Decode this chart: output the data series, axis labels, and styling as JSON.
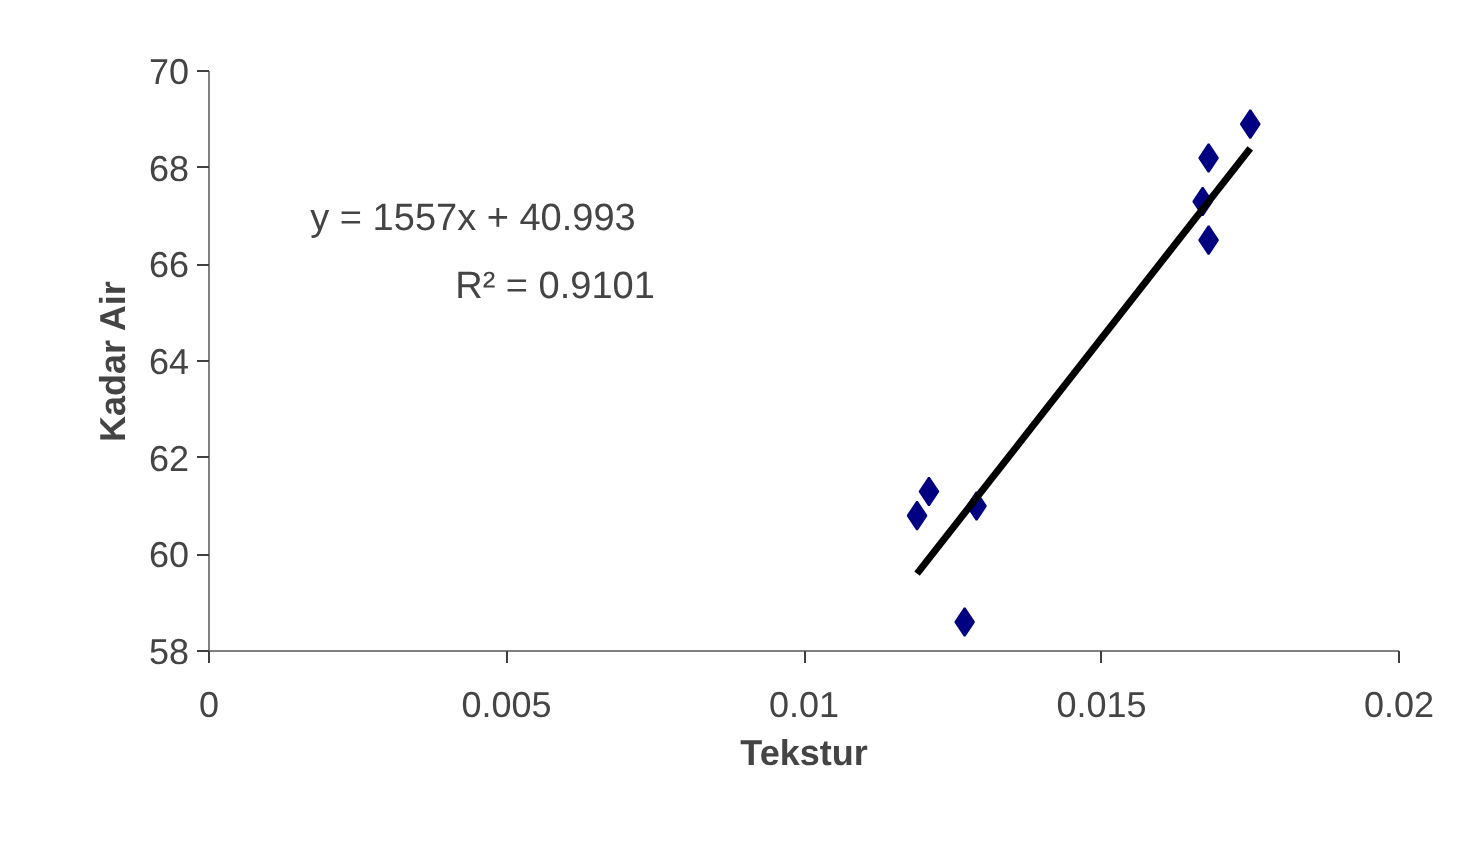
{
  "chart_data": {
    "type": "scatter",
    "xlabel": "Tekstur",
    "ylabel": "Kadar Air",
    "annotations": [
      "y = 1557x + 40.993",
      "R² = 0.9101"
    ],
    "series": [
      {
        "type": "scatter",
        "color": "#000080",
        "marker": "diamond",
        "x": [
          0.0175,
          0.0168,
          0.0167,
          0.0168,
          0.0121,
          0.0119,
          0.0129,
          0.0127
        ],
        "values": [
          68.9,
          68.2,
          67.3,
          66.5,
          61.3,
          60.8,
          61.0,
          58.6
        ]
      },
      {
        "type": "line",
        "color": "#000000",
        "marker": "none",
        "x": [
          0.0119,
          0.0175
        ],
        "values": [
          59.6,
          68.4
        ]
      }
    ],
    "xlim": [
      0,
      0.02
    ],
    "ylim": [
      58,
      70
    ],
    "xticks": [
      0,
      0.005,
      0.01,
      0.015,
      0.02
    ],
    "yticks": [
      58,
      60,
      62,
      64,
      66,
      68,
      70
    ],
    "grid": false,
    "legend": false
  }
}
